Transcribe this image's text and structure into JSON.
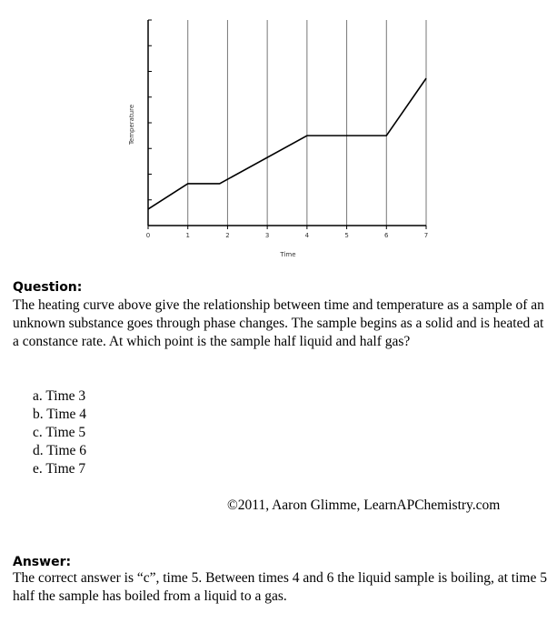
{
  "chart_data": {
    "type": "line",
    "x_label": "Time",
    "y_label": "Temperature",
    "x": [
      0,
      1,
      1.8,
      4,
      6,
      7
    ],
    "values": [
      0.64,
      1.63,
      1.63,
      3.5,
      3.5,
      5.73
    ],
    "color": "#000000",
    "xlim": [
      0,
      7
    ],
    "xticks": [
      0,
      1,
      2,
      3,
      4,
      5,
      6,
      7
    ],
    "ylim": [
      0,
      8
    ],
    "yticks": [
      1,
      2,
      3,
      4,
      5,
      6,
      7,
      8
    ],
    "grid": true
  },
  "question": {
    "heading": "Question:",
    "text": "The heating curve above give the relationship between time and temperature as a sample of an unknown substance goes through phase changes. The sample begins as a solid and is heated at a constance rate. At which point is the sample half liquid and half gas?",
    "options": [
      "a. Time 3",
      "b. Time 4",
      "c. Time 5",
      "d. Time 6",
      "e. Time 7"
    ]
  },
  "copyright": "©2011, Aaron Glimme, LearnAPChemistry.com",
  "answer": {
    "heading": "Answer:",
    "text": "The correct answer is “c”, time 5. Between times 4 and 6 the liquid sample is boiling, at time 5 half the sample has boiled from a liquid to a gas."
  }
}
